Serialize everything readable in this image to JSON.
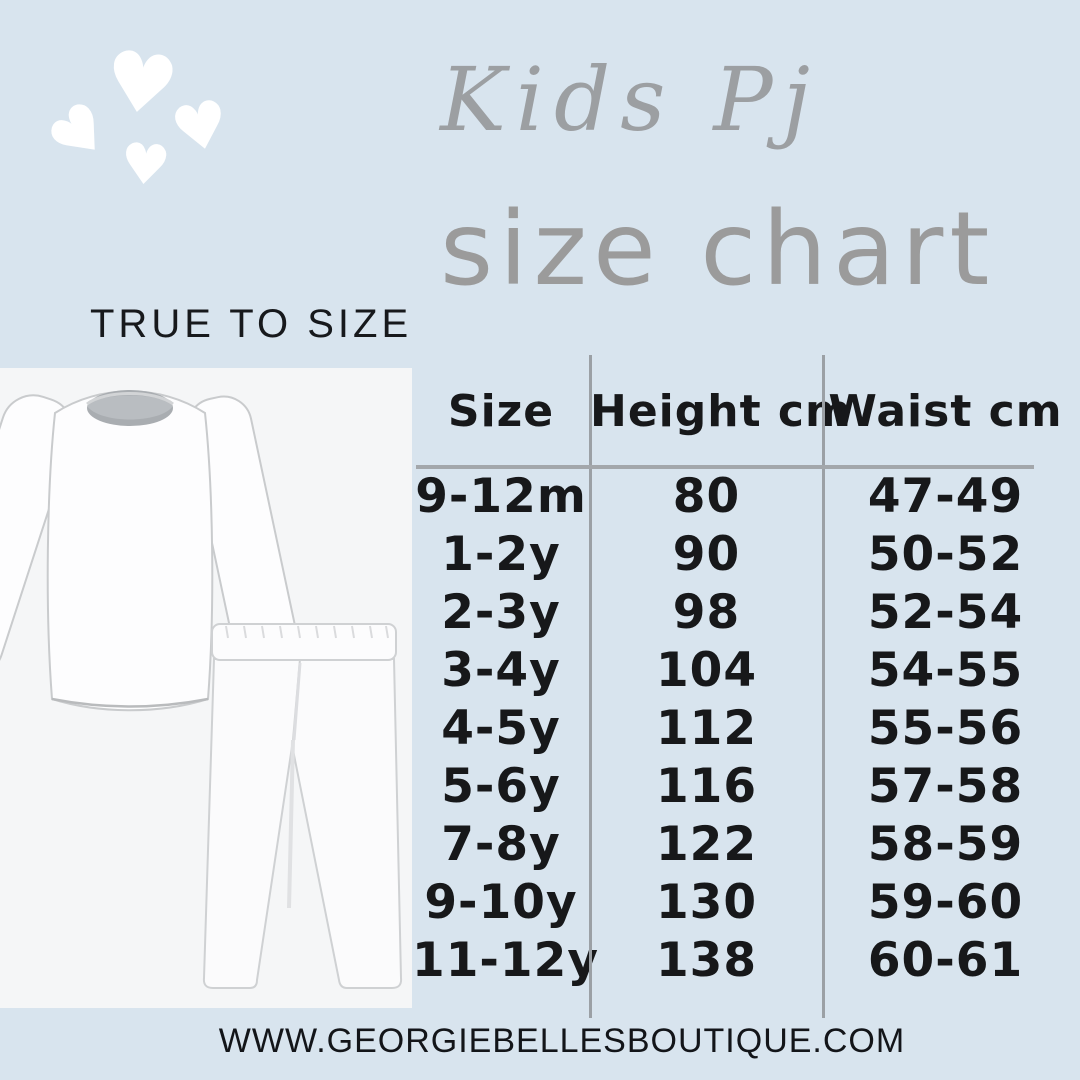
{
  "page": {
    "background_color": "#d8e4ee",
    "photo_background_color": "#f5f6f7",
    "title_color": "#9b9b9b",
    "text_color": "#17181a",
    "line_color": "#9ba0a5",
    "heart_color": "#ffffff"
  },
  "header": {
    "title_script": "Kids Pj",
    "title_main": "size chart"
  },
  "fit_note": "TRUE TO SIZE",
  "photo": {
    "description": "white kids pajama set - long sleeve top and leggings"
  },
  "size_table": {
    "columns": [
      "Size",
      "Height cm",
      "Waist cm"
    ],
    "rows": [
      {
        "size": "9-12m",
        "height": "80",
        "waist": "47-49"
      },
      {
        "size": "1-2y",
        "height": "90",
        "waist": "50-52"
      },
      {
        "size": "2-3y",
        "height": "98",
        "waist": "52-54"
      },
      {
        "size": "3-4y",
        "height": "104",
        "waist": "54-55"
      },
      {
        "size": "4-5y",
        "height": "112",
        "waist": "55-56"
      },
      {
        "size": "5-6y",
        "height": "116",
        "waist": "57-58"
      },
      {
        "size": "7-8y",
        "height": "122",
        "waist": "58-59"
      },
      {
        "size": "9-10y",
        "height": "130",
        "waist": "59-60"
      },
      {
        "size": "11-12y",
        "height": "138",
        "waist": "60-61"
      }
    ]
  },
  "footer": {
    "website": "WWW.GEORGIEBELLESBOUTIQUE.COM"
  },
  "decor": {
    "hearts_icon": "four white hearts"
  }
}
